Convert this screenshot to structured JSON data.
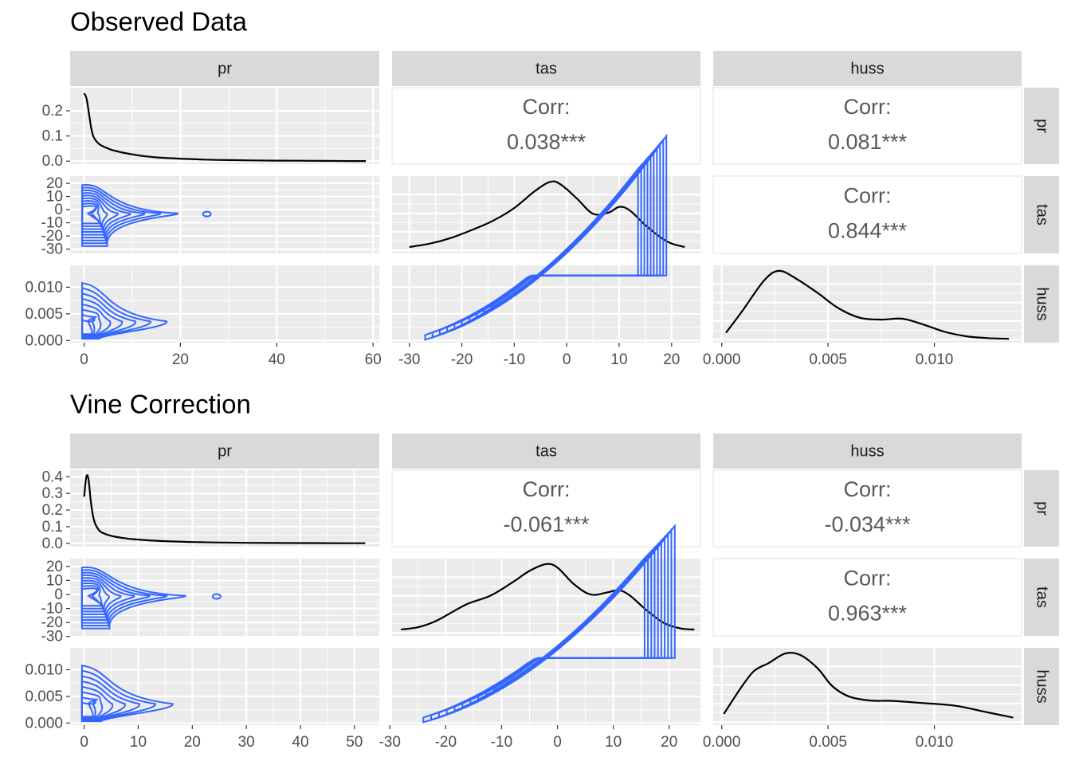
{
  "chart_data": [
    {
      "type": "pairs",
      "title": "Observed Data",
      "variables": [
        "pr",
        "tas",
        "huss"
      ],
      "correlations": [
        {
          "row": "pr",
          "col": "tas",
          "label": "Corr:",
          "value": "0.038***"
        },
        {
          "row": "pr",
          "col": "huss",
          "label": "Corr:",
          "value": "0.081***"
        },
        {
          "row": "tas",
          "col": "huss",
          "label": "Corr:",
          "value": "0.844***"
        }
      ],
      "axes": {
        "pr": {
          "range": [
            -2.9,
            61.3
          ],
          "ticks": [
            0,
            20,
            40,
            60
          ]
        },
        "tas": {
          "range": [
            -33.3,
            25.5
          ],
          "ticks": [
            -30,
            -20,
            -10,
            0,
            10,
            20
          ],
          "tick_labels": [
            "-30",
            "-20",
            "-10",
            "0",
            "10",
            "20"
          ]
        },
        "huss": {
          "range": [
            -0.0004,
            0.0141
          ],
          "ticks": [
            0,
            0.005,
            0.01
          ],
          "tick_labels": [
            "0.000",
            "0.005",
            "0.010"
          ]
        },
        "pr_density": {
          "range": [
            -0.012,
            0.292
          ],
          "ticks": [
            0,
            0.1,
            0.2
          ],
          "tick_labels": [
            "0.0",
            "0.1",
            "0.2"
          ]
        }
      },
      "densities": {
        "pr": {
          "x": [
            0,
            0.5,
            1,
            1.5,
            2,
            3,
            4,
            5,
            6,
            8,
            10,
            12,
            15,
            20,
            25,
            30,
            35,
            40,
            45,
            50,
            55,
            58.5
          ],
          "y": [
            0.27,
            0.25,
            0.19,
            0.13,
            0.095,
            0.07,
            0.058,
            0.05,
            0.043,
            0.034,
            0.027,
            0.021,
            0.015,
            0.01,
            0.006,
            0.004,
            0.003,
            0.002,
            0.0015,
            0.001,
            0.0005,
            0.0003
          ]
        },
        "tas": {
          "x": [
            -30,
            -26,
            -22,
            -18,
            -14,
            -10,
            -6,
            -3,
            -1,
            2,
            5,
            8,
            10,
            12,
            15,
            18,
            20,
            22.5
          ],
          "y": [
            0.003,
            0.006,
            0.011,
            0.018,
            0.026,
            0.037,
            0.052,
            0.06,
            0.057,
            0.045,
            0.032,
            0.033,
            0.038,
            0.035,
            0.022,
            0.011,
            0.006,
            0.003
          ]
        },
        "huss": {
          "x": [
            0.0002,
            0.001,
            0.002,
            0.0027,
            0.0035,
            0.0045,
            0.0055,
            0.0065,
            0.0075,
            0.0085,
            0.0095,
            0.0105,
            0.0115,
            0.0125,
            0.0135
          ],
          "y": [
            22,
            95,
            190,
            220,
            195,
            150,
            100,
            70,
            64,
            67,
            48,
            25,
            11,
            5,
            3
          ]
        }
      },
      "contours": {
        "pr_tas": {
          "max_x": 26,
          "center_y": -4
        },
        "pr_huss": {
          "max_x": 22,
          "center_y": 0.003
        },
        "tas_huss": {
          "x_range": [
            -27,
            19
          ]
        }
      }
    },
    {
      "type": "pairs",
      "title": "Vine Correction",
      "variables": [
        "pr",
        "tas",
        "huss"
      ],
      "correlations": [
        {
          "row": "pr",
          "col": "tas",
          "label": "Corr:",
          "value": "-0.061***"
        },
        {
          "row": "pr",
          "col": "huss",
          "label": "Corr:",
          "value": "-0.034***"
        },
        {
          "row": "tas",
          "col": "huss",
          "label": "Corr:",
          "value": "0.963***"
        }
      ],
      "axes": {
        "pr": {
          "range": [
            -2.6,
            54.6
          ],
          "ticks": [
            0,
            10,
            20,
            30,
            40,
            50
          ]
        },
        "tas": {
          "range": [
            -29.6,
            25.6
          ],
          "ticks": [
            -30,
            -20,
            -10,
            0,
            10,
            20
          ],
          "tick_labels": [
            "-30",
            "-20",
            "-10",
            "0",
            "10",
            "20"
          ]
        },
        "huss": {
          "range": [
            -0.0004,
            0.0141
          ],
          "ticks": [
            0,
            0.005,
            0.01
          ],
          "tick_labels": [
            "0.000",
            "0.005",
            "0.010"
          ]
        },
        "pr_density": {
          "range": [
            -0.02,
            0.44
          ],
          "ticks": [
            0,
            0.1,
            0.2,
            0.3,
            0.4
          ],
          "tick_labels": [
            "0.0",
            "0.1",
            "0.2",
            "0.3",
            "0.4"
          ]
        }
      },
      "densities": {
        "pr": {
          "x": [
            0,
            0.3,
            0.6,
            0.9,
            1.2,
            1.6,
            2,
            2.5,
            3,
            4,
            5,
            7,
            9,
            12,
            15,
            20,
            25,
            30,
            35,
            40,
            45,
            52
          ],
          "y": [
            0.28,
            0.38,
            0.41,
            0.36,
            0.26,
            0.17,
            0.12,
            0.09,
            0.07,
            0.055,
            0.045,
            0.033,
            0.025,
            0.018,
            0.013,
            0.008,
            0.005,
            0.003,
            0.002,
            0.0015,
            0.001,
            0.0005
          ]
        },
        "tas": {
          "x": [
            -28,
            -25,
            -22,
            -19,
            -16,
            -12,
            -8,
            -5,
            -2,
            0,
            3,
            6,
            9,
            11,
            13,
            16,
            19,
            22,
            24.5
          ],
          "y": [
            0.003,
            0.005,
            0.01,
            0.018,
            0.026,
            0.033,
            0.045,
            0.055,
            0.061,
            0.058,
            0.043,
            0.034,
            0.036,
            0.038,
            0.033,
            0.02,
            0.009,
            0.004,
            0.003
          ]
        },
        "huss": {
          "x": [
            0.0001,
            0.0008,
            0.0015,
            0.0022,
            0.003,
            0.0037,
            0.0045,
            0.0052,
            0.006,
            0.007,
            0.008,
            0.0095,
            0.011,
            0.0125,
            0.0137
          ],
          "y": [
            25,
            95,
            155,
            180,
            210,
            205,
            165,
            110,
            78,
            66,
            65,
            58,
            50,
            30,
            14
          ]
        }
      },
      "contours": {
        "pr_tas": {
          "max_x": 25,
          "center_y": -2
        },
        "pr_huss": {
          "max_x": 21,
          "center_y": 0.003
        },
        "tas_huss": {
          "x_range": [
            -24,
            21
          ]
        }
      }
    }
  ],
  "colors": {
    "panel": "#ebebeb",
    "grid": "#ffffff",
    "strip": "#d9d9d9",
    "contour": "#3366ff",
    "density": "#000000",
    "tick": "#4d4d4d"
  }
}
